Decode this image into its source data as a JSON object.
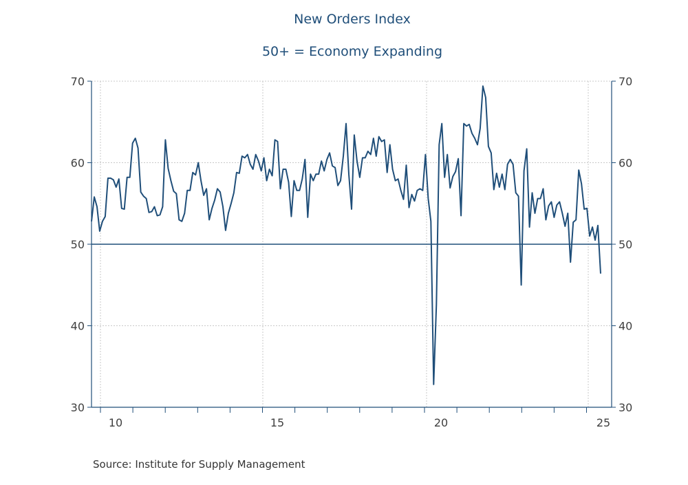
{
  "chart_data": {
    "type": "line",
    "title": "New Orders Index",
    "subtitle": "50+ = Economy Expanding",
    "ylim": [
      30,
      70
    ],
    "y_ticks": [
      70,
      60,
      50,
      40,
      30
    ],
    "x_tick_labels": [
      "10",
      "15",
      "20",
      "25"
    ],
    "reference_line": 50,
    "grid": true,
    "line_color": "#1f4e79",
    "series": [
      {
        "values": [
          52.8,
          55.8,
          54.6,
          51.6,
          52.8,
          53.4,
          58.1,
          58.1,
          57.9,
          57.0,
          58.0,
          54.4,
          54.3,
          58.2,
          58.2,
          62.4,
          63.0,
          61.8,
          56.4,
          55.9,
          55.6,
          53.9,
          54.0,
          54.6,
          53.5,
          53.6,
          54.6,
          62.8,
          59.3,
          57.8,
          56.5,
          56.2,
          53.0,
          52.8,
          53.8,
          56.6,
          56.6,
          58.8,
          58.5,
          60.0,
          57.8,
          56.0,
          56.8,
          53.0,
          54.4,
          55.4,
          56.8,
          56.4,
          54.6,
          51.7,
          53.8,
          55.0,
          56.3,
          58.8,
          58.7,
          60.8,
          60.6,
          61.0,
          59.8,
          59.2,
          61.0,
          60.2,
          59.0,
          60.6,
          57.8,
          59.2,
          58.4,
          62.8,
          62.6,
          56.8,
          59.2,
          59.2,
          57.6,
          53.4,
          57.8,
          56.6,
          56.6,
          58.0,
          60.4,
          53.3,
          58.6,
          57.8,
          58.6,
          58.6,
          60.2,
          59.0,
          60.4,
          61.2,
          59.6,
          59.4,
          57.2,
          57.8,
          60.8,
          64.8,
          58.6,
          54.3,
          63.4,
          60.2,
          58.2,
          60.6,
          60.6,
          61.4,
          61.0,
          63.0,
          60.8,
          63.2,
          62.6,
          62.8,
          58.8,
          62.2,
          59.2,
          57.8,
          58.0,
          56.6,
          55.5,
          59.7,
          54.5,
          56.1,
          55.3,
          56.6,
          56.8,
          56.6,
          61.0,
          55.6,
          52.8,
          32.8,
          42.6,
          62.2,
          64.8,
          58.2,
          61.0,
          56.9,
          58.3,
          58.9,
          60.5,
          53.5,
          64.8,
          64.5,
          64.7,
          63.6,
          63.0,
          62.2,
          64.2,
          69.4,
          68.0,
          62.0,
          61.2,
          56.7,
          58.7,
          57.0,
          58.6,
          56.7,
          59.8,
          60.4,
          59.8,
          56.3,
          55.9,
          45.0,
          59.0,
          61.7,
          52.1,
          56.3,
          53.8,
          55.6,
          55.6,
          56.8,
          53.0,
          54.7,
          55.2,
          53.3,
          54.8,
          55.2,
          53.8,
          52.2,
          53.8,
          47.8,
          52.7,
          53.0,
          59.1,
          57.4,
          54.3,
          54.4,
          51.0,
          52.1,
          50.5,
          52.3,
          46.4
        ]
      }
    ]
  },
  "source_note": "Source:  Institute for Supply Management"
}
